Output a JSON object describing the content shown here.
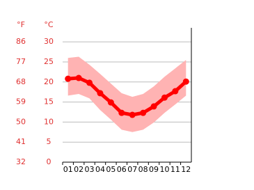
{
  "chart_data": {
    "type": "line",
    "y2_unit": "°F",
    "y_unit": "°C",
    "categories": [
      "01",
      "02",
      "03",
      "04",
      "05",
      "06",
      "07",
      "08",
      "09",
      "10",
      "11",
      "12"
    ],
    "series": [
      {
        "color": "#ff0000",
        "values": [
          20.8,
          21.0,
          19.8,
          17.2,
          14.9,
          12.3,
          11.8,
          12.3,
          13.9,
          16.1,
          17.7,
          20.1
        ]
      }
    ],
    "band": {
      "color": "#ffb3b3",
      "upper": [
        26.0,
        26.3,
        24.3,
        22.0,
        19.6,
        17.2,
        16.3,
        17.0,
        18.9,
        21.3,
        23.4,
        25.5
      ],
      "lower": [
        16.6,
        17.0,
        15.9,
        13.0,
        10.6,
        8.1,
        7.5,
        8.1,
        9.9,
        12.3,
        14.4,
        16.6
      ]
    },
    "ylim": [
      0,
      33.5
    ],
    "yticks": [
      0,
      5,
      10,
      15,
      20,
      25,
      30
    ],
    "y2lim": [
      32,
      92.3
    ],
    "y2ticks": [
      32,
      41,
      50,
      59,
      68,
      77,
      86
    ],
    "grid": true
  }
}
